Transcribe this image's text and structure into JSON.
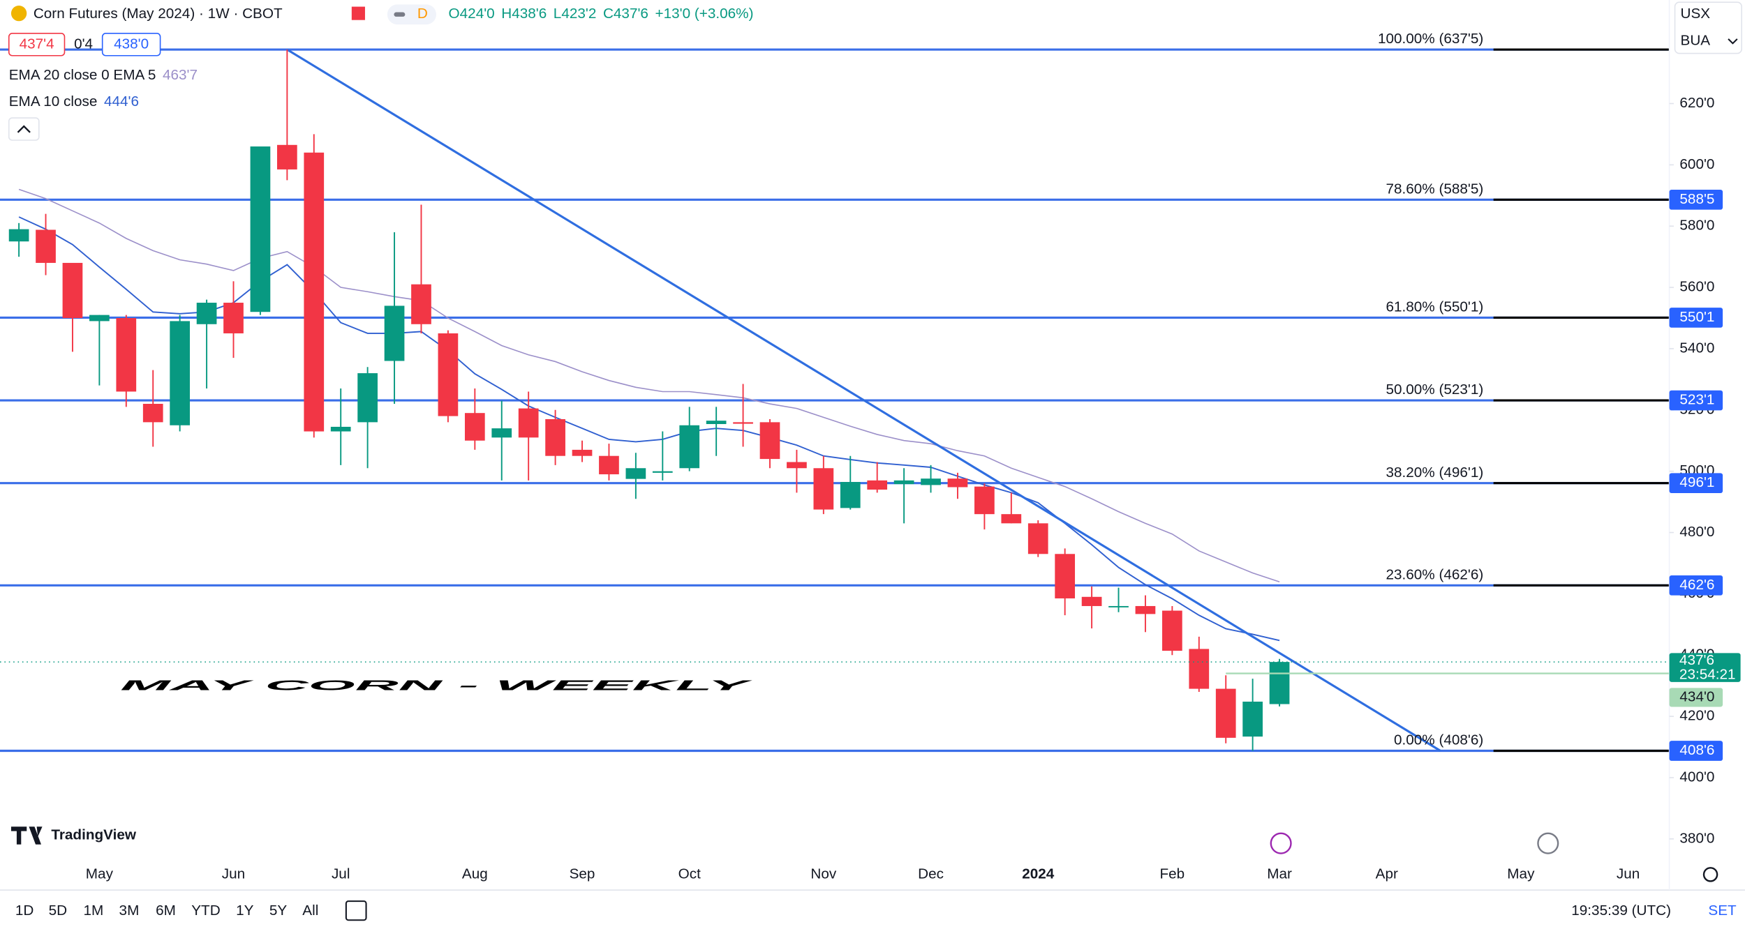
{
  "chart_data": {
    "type": "candlestick",
    "header": {
      "title": "Corn Futures (May 2024) · 1W · CBOT",
      "badge": "D",
      "ohlc": [
        "O424'0",
        "H438'6",
        "L423'2",
        "C437'6",
        "+13'0 (+3.06%)"
      ]
    },
    "quotes": {
      "bid": "437'4",
      "spread": "0'4",
      "ask": "438'0"
    },
    "currency": [
      "USX",
      "BUA"
    ],
    "annotation": "MAY CORN - WEEKLY",
    "logo": "TradingView",
    "ranges": [
      "1D",
      "5D",
      "1M",
      "3M",
      "6M",
      "YTD",
      "1Y",
      "5Y",
      "All"
    ],
    "clock": "19:35:39 (UTC)",
    "settings": "SET",
    "up_color": "#089981",
    "down_color": "#f23645",
    "categories": [
      null,
      null,
      null,
      "May",
      null,
      null,
      null,
      null,
      "Jun",
      null,
      null,
      null,
      "Jul",
      null,
      null,
      null,
      null,
      "Aug",
      null,
      null,
      null,
      "Sep",
      null,
      null,
      null,
      "Oct",
      null,
      null,
      null,
      null,
      "Nov",
      null,
      null,
      null,
      "Dec",
      null,
      null,
      null,
      "2024",
      null,
      null,
      null,
      null,
      "Feb",
      null,
      null,
      null,
      "Mar",
      null,
      null,
      null,
      "Apr",
      null,
      null,
      null,
      null,
      "May",
      null,
      null,
      null,
      "Jun"
    ],
    "open": [
      575,
      578.8,
      568,
      549,
      550,
      522,
      515,
      548,
      555,
      552,
      606.5,
      604,
      513,
      516,
      536,
      561,
      545,
      519,
      511,
      520.5,
      517,
      507,
      505,
      497.5,
      499.5,
      501,
      515.4,
      516,
      516,
      503,
      501,
      488,
      497,
      495.8,
      495.5,
      497.6,
      495,
      486,
      483,
      473,
      459,
      455.6,
      456,
      454.5,
      442,
      429,
      413.4,
      424,
      null,
      null,
      null,
      null,
      null,
      null,
      null,
      null,
      null,
      null,
      null,
      null,
      null
    ],
    "high": [
      581,
      584,
      566,
      551,
      551,
      533,
      551,
      556,
      562,
      606,
      637.625,
      610,
      527,
      534,
      578,
      587,
      546,
      527,
      523,
      526,
      520,
      510,
      509,
      506,
      513,
      521,
      521,
      528.5,
      517,
      507,
      505,
      505,
      503,
      501,
      502,
      499.5,
      496,
      493,
      484,
      474.8,
      462.4,
      462,
      459.5,
      456,
      446,
      433.4,
      432.3,
      438.75,
      null,
      null,
      null,
      null,
      null,
      null,
      null,
      null,
      null,
      null,
      null,
      null,
      null
    ],
    "low": [
      570,
      564,
      539,
      528,
      521,
      508,
      513,
      527,
      537,
      551,
      595,
      511,
      502,
      501,
      522,
      545,
      516,
      507,
      497,
      497,
      502,
      503,
      497,
      491,
      497,
      500,
      505,
      508,
      501,
      493,
      486,
      487.5,
      493,
      483,
      493,
      491,
      481,
      483,
      472,
      453,
      448.7,
      454,
      447.5,
      440,
      428,
      411.2,
      408.75,
      423.25,
      null,
      null,
      null,
      null,
      null,
      null,
      null,
      null,
      null,
      null,
      null,
      null,
      null
    ],
    "close": [
      579,
      568,
      550,
      551,
      526,
      516,
      549,
      555,
      545,
      606,
      598.5,
      513,
      514.5,
      532,
      554,
      548,
      518,
      510,
      514,
      511,
      505,
      505,
      499,
      501,
      500,
      515,
      516.5,
      515.5,
      504,
      501,
      487.5,
      496.5,
      494,
      497,
      497.6,
      494.8,
      486,
      483,
      473,
      458.5,
      456,
      456,
      453.4,
      441.4,
      429,
      413,
      424.8,
      437.75,
      null,
      null,
      null,
      null,
      null,
      null,
      null,
      null,
      null,
      null,
      null,
      null,
      null
    ],
    "series": [
      {
        "name": "EMA 20 close 0 EMA 5",
        "color": "#9b8fc9",
        "legend_value": "463'7",
        "values": [
          592,
          589,
          585,
          581,
          576,
          572,
          569,
          567.6,
          565.5,
          569.5,
          571.7,
          566.6,
          560,
          558.6,
          557,
          555.7,
          550,
          545.6,
          541,
          538,
          535.8,
          532.5,
          529.6,
          527.4,
          526,
          526,
          525,
          524,
          522,
          520.5,
          517.6,
          514.7,
          512,
          510,
          509,
          506.7,
          505,
          501,
          498,
          495,
          491,
          486.8,
          483,
          479.5,
          474,
          470.4,
          466.8,
          463.875,
          null,
          null,
          null,
          null,
          null,
          null,
          null,
          null,
          null,
          null,
          null,
          null,
          null
        ]
      },
      {
        "name": "EMA 10 close",
        "color": "#2f5fd0",
        "legend_value": "444'6",
        "values": [
          583,
          579,
          574,
          566.6,
          559.4,
          552,
          551.4,
          552,
          555,
          562,
          567.4,
          558.6,
          548.5,
          545,
          545,
          545.6,
          539.4,
          531.8,
          526.7,
          521.3,
          517.6,
          514,
          510.4,
          509.6,
          510.4,
          513,
          514,
          513.3,
          511,
          508.5,
          505,
          503.8,
          502.7,
          502,
          501.3,
          498.4,
          495.5,
          493,
          489.7,
          483,
          476,
          468.6,
          463,
          458.4,
          453,
          448.6,
          446.8,
          444.75,
          null,
          null,
          null,
          null,
          null,
          null,
          null,
          null,
          null,
          null,
          null,
          null,
          null
        ]
      }
    ],
    "fib_color": "#3a6ee8",
    "fib_levels": [
      {
        "label": "100.00% (637'5)",
        "value": 637.625
      },
      {
        "label": "78.60% (588'5)",
        "value": 588.625,
        "tag": "588'5"
      },
      {
        "label": "61.80% (550'1)",
        "value": 550.125,
        "tag": "550'1"
      },
      {
        "label": "50.00% (523'1)",
        "value": 523.125,
        "tag": "523'1"
      },
      {
        "label": "38.20% (496'1)",
        "value": 496.125,
        "tag": "496'1"
      },
      {
        "label": "23.60% (462'6)",
        "value": 462.75,
        "tag": "462'6"
      },
      {
        "label": "0.00% (408'6)",
        "value": 408.75,
        "tag": "408'6"
      }
    ],
    "trendline": {
      "from": {
        "x": 10,
        "y": 637.625
      },
      "to": {
        "x": 53,
        "y": 408.75
      }
    },
    "current_price": {
      "value": 437.75,
      "label": "437'6",
      "countdown": "23:54:21"
    },
    "hline": {
      "value": 434,
      "label": "434'0",
      "color": "#a8dab5"
    },
    "ylim": [
      374.2,
      653.8
    ],
    "yticks": [
      {
        "value": 620,
        "label": "620'0"
      },
      {
        "value": 600,
        "label": "600'0"
      },
      {
        "value": 580,
        "label": "580'0"
      },
      {
        "value": 560,
        "label": "560'0"
      },
      {
        "value": 540,
        "label": "540'0"
      },
      {
        "value": 520,
        "label": "520'0"
      },
      {
        "value": 500,
        "label": "500'0"
      },
      {
        "value": 480,
        "label": "480'0"
      },
      {
        "value": 460,
        "label": "460'0"
      },
      {
        "value": 440,
        "label": "440'0"
      },
      {
        "value": 420,
        "label": "420'0"
      },
      {
        "value": 400,
        "label": "400'0"
      },
      {
        "value": 380,
        "label": "380'0"
      }
    ]
  }
}
